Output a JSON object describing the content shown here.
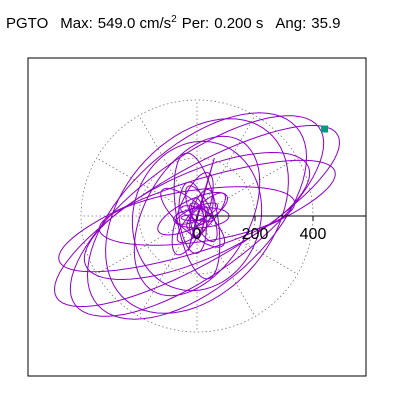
{
  "header": {
    "component": "PGTO",
    "max_label": "Max:",
    "max_value": "549.0 cm/s",
    "max_exp": "2",
    "per_label": "Per:",
    "per_value": "0.200 s",
    "ang_label": "Ang:",
    "ang_value": "35.9"
  },
  "chart_data": {
    "type": "orbit",
    "title": "PGTO Max: 549.0 cm/s2 Per: 0.200 s Ang: 35.9",
    "x_ticks": [
      0,
      200,
      400
    ],
    "x_tick_labels": [
      "0",
      "200",
      "400"
    ],
    "axis_range": [
      -600,
      600
    ],
    "polar_grid": {
      "circles": [
        200,
        400
      ],
      "spokes_deg": [
        0,
        30,
        60,
        90,
        120,
        150,
        180,
        210,
        240,
        270,
        300,
        330
      ],
      "style": "dotted"
    },
    "peak_marker": {
      "x": 440,
      "y": 300
    },
    "orbit_ellipses": [
      {
        "a": 560,
        "b": 160,
        "angle_deg": 30
      },
      {
        "a": 520,
        "b": 200,
        "angle_deg": 36
      },
      {
        "a": 460,
        "b": 240,
        "angle_deg": 42
      },
      {
        "a": 420,
        "b": 150,
        "angle_deg": 24
      },
      {
        "a": 380,
        "b": 260,
        "angle_deg": 50
      },
      {
        "a": 300,
        "b": 180,
        "angle_deg": 60
      },
      {
        "a": 500,
        "b": 120,
        "angle_deg": 18
      },
      {
        "a": 260,
        "b": 220,
        "angle_deg": 75
      },
      {
        "a": 340,
        "b": 90,
        "angle_deg": 8
      },
      {
        "a": 220,
        "b": 70,
        "angle_deg": 100
      }
    ],
    "colors": {
      "trace": "#8e00c8",
      "marker": "#009b7d",
      "grid": "#777777",
      "axis": "#000000"
    }
  }
}
